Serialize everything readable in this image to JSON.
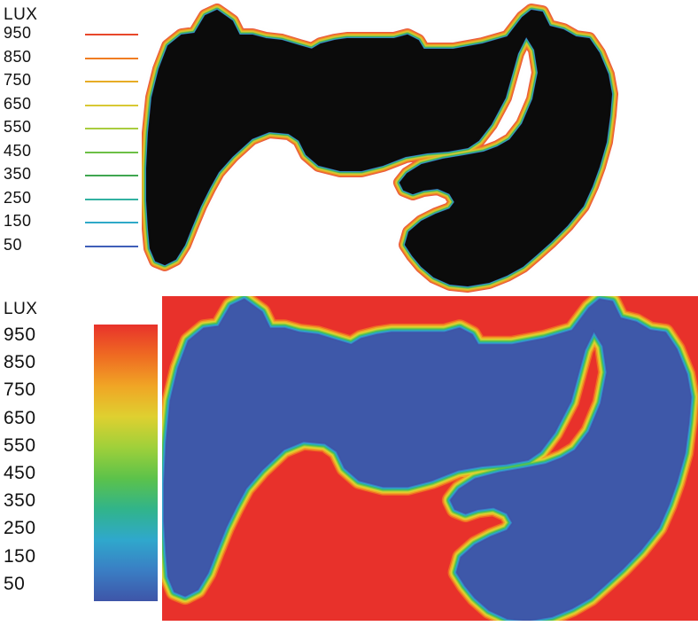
{
  "chart_data": [
    {
      "type": "contour",
      "legend": {
        "title": "LUX",
        "levels": [
          950,
          850,
          750,
          650,
          550,
          450,
          350,
          250,
          150,
          50
        ],
        "colors": [
          "#e8472b",
          "#f07d22",
          "#e7ac25",
          "#d8c834",
          "#a9cc3e",
          "#6cbf45",
          "#3fa650",
          "#32b1a1",
          "#2fa9c8",
          "#3f5fb8"
        ]
      },
      "background": "#ffffff",
      "floorplan_fill": "#0b0b0b"
    },
    {
      "type": "heatmap",
      "legend": {
        "title": "LUX",
        "levels": [
          950,
          850,
          750,
          650,
          550,
          450,
          350,
          250,
          150,
          50
        ],
        "colormap": [
          "#e8322b",
          "#ef6a22",
          "#f0a525",
          "#dfd030",
          "#9fd03a",
          "#5cc24a",
          "#31b48a",
          "#2fa8cc",
          "#3a7ec4",
          "#3e55a8"
        ]
      },
      "outside_color": "#e8312b",
      "interior_color": "#3e58a9"
    }
  ]
}
